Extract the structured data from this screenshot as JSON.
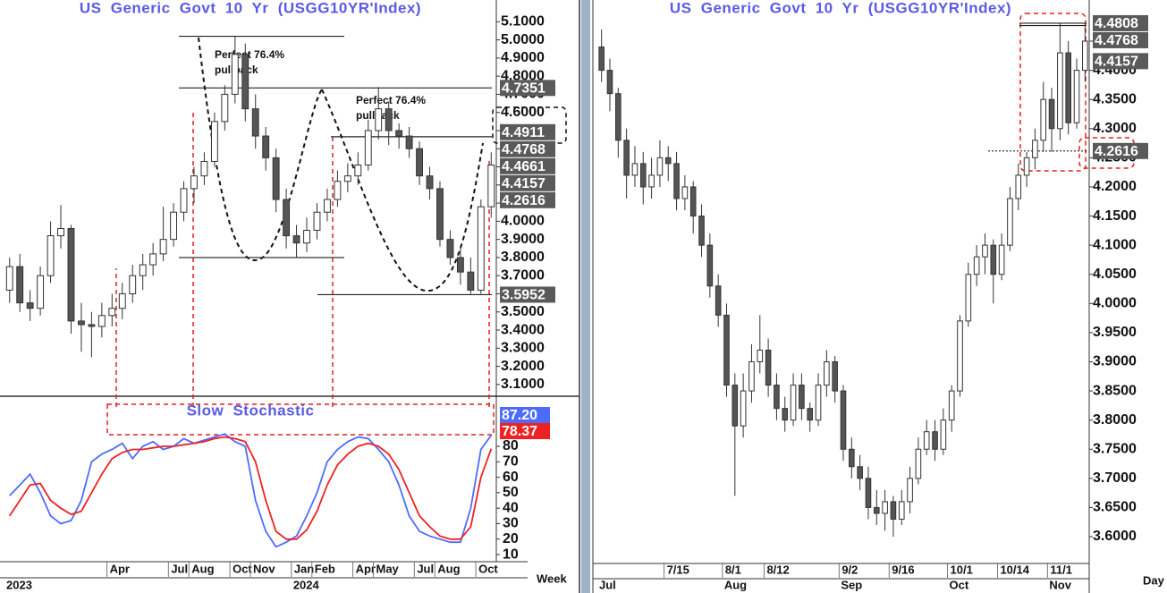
{
  "chart_data": [
    {
      "type": "candlestick",
      "title": "US Generic Govt 10 Yr (USGG10YR'Index)",
      "period_label": "Week",
      "categories": [
        null,
        null,
        null,
        null,
        null,
        null,
        null,
        null,
        null,
        null,
        "Apr",
        null,
        null,
        null,
        null,
        null,
        "Jul",
        null,
        "Aug",
        null,
        null,
        null,
        "Oct",
        null,
        "Nov",
        null,
        null,
        null,
        "Jan",
        null,
        "Feb",
        null,
        null,
        null,
        "Apr",
        null,
        "May",
        null,
        null,
        null,
        "Jul",
        null,
        "Aug",
        null,
        null,
        null,
        "Oct",
        null
      ],
      "years": [
        "2023",
        null,
        null,
        null,
        null,
        null,
        null,
        null,
        null,
        null,
        null,
        null,
        null,
        null,
        null,
        null,
        null,
        null,
        null,
        null,
        null,
        null,
        null,
        null,
        null,
        null,
        null,
        null,
        "2024",
        null,
        null,
        null,
        null,
        null,
        null,
        null,
        null,
        null,
        null,
        null,
        null,
        null,
        null,
        null,
        null,
        null,
        null,
        null
      ],
      "candles": [
        [
          3.62,
          3.8,
          3.55,
          3.75
        ],
        [
          3.75,
          3.82,
          3.5,
          3.55
        ],
        [
          3.55,
          3.62,
          3.45,
          3.52
        ],
        [
          3.52,
          3.75,
          3.48,
          3.7
        ],
        [
          3.7,
          4.0,
          3.66,
          3.92
        ],
        [
          3.92,
          4.09,
          3.85,
          3.96
        ],
        [
          3.96,
          3.98,
          3.38,
          3.45
        ],
        [
          3.45,
          3.55,
          3.28,
          3.43
        ],
        [
          3.43,
          3.5,
          3.25,
          3.42
        ],
        [
          3.42,
          3.55,
          3.36,
          3.48
        ],
        [
          3.48,
          3.6,
          3.42,
          3.52
        ],
        [
          3.52,
          3.66,
          3.46,
          3.6
        ],
        [
          3.6,
          3.76,
          3.55,
          3.7
        ],
        [
          3.7,
          3.82,
          3.62,
          3.76
        ],
        [
          3.76,
          3.88,
          3.7,
          3.82
        ],
        [
          3.82,
          4.08,
          3.78,
          3.9
        ],
        [
          3.9,
          4.1,
          3.86,
          4.05
        ],
        [
          4.05,
          4.22,
          4.0,
          4.18
        ],
        [
          4.18,
          4.3,
          4.1,
          4.25
        ],
        [
          4.25,
          4.38,
          4.2,
          4.33
        ],
        [
          4.33,
          4.6,
          4.3,
          4.55
        ],
        [
          4.55,
          4.75,
          4.5,
          4.7
        ],
        [
          4.7,
          5.02,
          4.65,
          4.92
        ],
        [
          4.92,
          4.98,
          4.55,
          4.62
        ],
        [
          4.62,
          4.7,
          4.4,
          4.47
        ],
        [
          4.47,
          4.52,
          4.28,
          4.35
        ],
        [
          4.35,
          4.4,
          4.05,
          4.12
        ],
        [
          4.12,
          4.18,
          3.85,
          3.92
        ],
        [
          3.92,
          3.98,
          3.8,
          3.88
        ],
        [
          3.88,
          4.02,
          3.83,
          3.95
        ],
        [
          3.95,
          4.1,
          3.9,
          4.05
        ],
        [
          4.05,
          4.18,
          4.0,
          4.12
        ],
        [
          4.12,
          4.28,
          4.08,
          4.22
        ],
        [
          4.22,
          4.32,
          4.16,
          4.25
        ],
        [
          4.25,
          4.38,
          4.2,
          4.31
        ],
        [
          4.31,
          4.56,
          4.28,
          4.5
        ],
        [
          4.5,
          4.74,
          4.45,
          4.62
        ],
        [
          4.62,
          4.66,
          4.42,
          4.5
        ],
        [
          4.5,
          4.54,
          4.4,
          4.47
        ],
        [
          4.47,
          4.52,
          4.35,
          4.4
        ],
        [
          4.4,
          4.44,
          4.2,
          4.25
        ],
        [
          4.25,
          4.3,
          4.12,
          4.18
        ],
        [
          4.18,
          4.22,
          3.86,
          3.9
        ],
        [
          3.9,
          3.95,
          3.76,
          3.8
        ],
        [
          3.8,
          3.86,
          3.65,
          3.72
        ],
        [
          3.72,
          3.8,
          3.6,
          3.62
        ],
        [
          3.62,
          4.12,
          3.6,
          4.08
        ],
        [
          4.08,
          4.38,
          4.02,
          4.31
        ]
      ],
      "ylim": [
        3.05,
        5.22
      ],
      "yticks": [
        {
          "value": 3.1,
          "label": "3.1000"
        },
        {
          "value": 3.2,
          "label": "3.2000"
        },
        {
          "value": 3.3,
          "label": "3.3000"
        },
        {
          "value": 3.4,
          "label": "3.4000"
        },
        {
          "value": 3.5,
          "label": "3.5000"
        },
        {
          "value": 3.6,
          "label": "3.6000"
        },
        {
          "value": 3.7,
          "label": "3.7000"
        },
        {
          "value": 3.8,
          "label": "3.8000"
        },
        {
          "value": 3.9,
          "label": "3.9000"
        },
        {
          "value": 4.0,
          "label": "4.0000"
        },
        {
          "value": 4.1,
          "label": "4.1000"
        },
        {
          "value": 4.2,
          "label": "4.2000"
        },
        {
          "value": 4.3,
          "label": "4.3000"
        },
        {
          "value": 4.4,
          "label": "4.4000"
        },
        {
          "value": 4.5,
          "label": "4.5000"
        },
        {
          "value": 4.6,
          "label": "4.6000"
        },
        {
          "value": 4.7,
          "label": "4.7000"
        },
        {
          "value": 4.8,
          "label": "4.8000"
        },
        {
          "value": 4.9,
          "label": "4.9000"
        },
        {
          "value": 5.0,
          "label": "5.0000"
        },
        {
          "value": 5.1,
          "label": "5.1000"
        }
      ],
      "levels": [
        5.02,
        4.7351,
        3.8,
        3.5952,
        4.4661
      ],
      "price_labels": [
        4.7351,
        4.4911,
        4.4768,
        4.4661,
        4.4157,
        4.2616,
        3.5952
      ],
      "annotations": [
        "Perfect 76.4%",
        "pullback",
        "Perfect 76.4%",
        "pullback"
      ]
    },
    {
      "type": "line",
      "title": "Slow Stochastic",
      "series": [
        {
          "color": "#4d6cff",
          "values": [
            48,
            55,
            62,
            50,
            35,
            30,
            32,
            45,
            70,
            75,
            78,
            82,
            72,
            80,
            83,
            78,
            80,
            85,
            82,
            84,
            86,
            88,
            83,
            80,
            45,
            25,
            15,
            18,
            22,
            35,
            50,
            70,
            78,
            83,
            86,
            85,
            78,
            70,
            55,
            35,
            25,
            22,
            20,
            18,
            18,
            40,
            78,
            87.2
          ],
          "readout": {
            "value": 87.2,
            "label": "87.20"
          }
        },
        {
          "color": "#ee2222",
          "values": [
            35,
            45,
            55,
            56,
            45,
            40,
            36,
            38,
            50,
            62,
            72,
            76,
            78,
            78,
            79,
            80,
            80,
            81,
            82,
            83,
            85,
            86,
            85,
            83,
            70,
            45,
            25,
            20,
            20,
            26,
            38,
            55,
            68,
            75,
            80,
            82,
            80,
            75,
            65,
            50,
            35,
            28,
            22,
            20,
            20,
            28,
            60,
            78.37
          ],
          "readout": {
            "value": 78.37,
            "label": "78.37"
          }
        }
      ],
      "ylim": [
        5.4,
        109.5
      ],
      "yticks": [
        10,
        20,
        30,
        40,
        50,
        60,
        70,
        80
      ]
    },
    {
      "type": "candlestick",
      "title": "US Generic Govt 10 Yr (USGG10YR'Index)",
      "period_label": "Day",
      "categories": [
        null,
        null,
        null,
        null,
        null,
        null,
        null,
        null,
        "7/15",
        null,
        null,
        null,
        null,
        null,
        null,
        "8/1",
        null,
        null,
        null,
        null,
        "8/12",
        null,
        null,
        null,
        null,
        null,
        null,
        null,
        null,
        "9/2",
        null,
        null,
        null,
        null,
        null,
        "9/16",
        null,
        null,
        null,
        null,
        null,
        null,
        "10/1",
        null,
        null,
        null,
        null,
        null,
        "10/14",
        null,
        null,
        null,
        null,
        null,
        "11/1",
        null,
        null,
        null,
        null
      ],
      "months": [
        "Jul",
        null,
        null,
        null,
        null,
        null,
        null,
        null,
        null,
        null,
        null,
        null,
        null,
        null,
        null,
        "Aug",
        null,
        null,
        null,
        null,
        null,
        null,
        null,
        null,
        null,
        null,
        null,
        null,
        null,
        "Sep",
        null,
        null,
        null,
        null,
        null,
        null,
        null,
        null,
        null,
        null,
        null,
        null,
        "Oct",
        null,
        null,
        null,
        null,
        null,
        null,
        null,
        null,
        null,
        null,
        null,
        "Nov",
        null,
        null,
        null,
        null
      ],
      "candles": [
        [
          4.44,
          4.47,
          4.38,
          4.4
        ],
        [
          4.4,
          4.42,
          4.33,
          4.36
        ],
        [
          4.36,
          4.37,
          4.25,
          4.28
        ],
        [
          4.28,
          4.3,
          4.18,
          4.22
        ],
        [
          4.22,
          4.27,
          4.2,
          4.24
        ],
        [
          4.24,
          4.26,
          4.17,
          4.2
        ],
        [
          4.2,
          4.25,
          4.18,
          4.22
        ],
        [
          4.22,
          4.28,
          4.2,
          4.25
        ],
        [
          4.25,
          4.27,
          4.21,
          4.24
        ],
        [
          4.24,
          4.26,
          4.16,
          4.18
        ],
        [
          4.18,
          4.22,
          4.16,
          4.2
        ],
        [
          4.2,
          4.21,
          4.12,
          4.15
        ],
        [
          4.15,
          4.17,
          4.08,
          4.1
        ],
        [
          4.1,
          4.12,
          4.01,
          4.03
        ],
        [
          4.03,
          4.05,
          3.96,
          3.98
        ],
        [
          3.98,
          4.0,
          3.84,
          3.86
        ],
        [
          3.86,
          3.88,
          3.67,
          3.79
        ],
        [
          3.79,
          3.88,
          3.77,
          3.85
        ],
        [
          3.85,
          3.93,
          3.83,
          3.9
        ],
        [
          3.9,
          3.98,
          3.88,
          3.92
        ],
        [
          3.92,
          3.94,
          3.84,
          3.86
        ],
        [
          3.86,
          3.88,
          3.8,
          3.82
        ],
        [
          3.82,
          3.84,
          3.78,
          3.8
        ],
        [
          3.8,
          3.88,
          3.79,
          3.86
        ],
        [
          3.86,
          3.88,
          3.8,
          3.82
        ],
        [
          3.82,
          3.83,
          3.78,
          3.8
        ],
        [
          3.8,
          3.88,
          3.79,
          3.86
        ],
        [
          3.86,
          3.92,
          3.84,
          3.9
        ],
        [
          3.9,
          3.91,
          3.83,
          3.85
        ],
        [
          3.85,
          3.86,
          3.73,
          3.75
        ],
        [
          3.75,
          3.77,
          3.7,
          3.72
        ],
        [
          3.72,
          3.74,
          3.68,
          3.7
        ],
        [
          3.7,
          3.72,
          3.63,
          3.65
        ],
        [
          3.65,
          3.68,
          3.62,
          3.64
        ],
        [
          3.64,
          3.68,
          3.61,
          3.66
        ],
        [
          3.66,
          3.67,
          3.6,
          3.63
        ],
        [
          3.63,
          3.68,
          3.62,
          3.66
        ],
        [
          3.66,
          3.72,
          3.64,
          3.7
        ],
        [
          3.7,
          3.77,
          3.69,
          3.75
        ],
        [
          3.75,
          3.8,
          3.74,
          3.78
        ],
        [
          3.78,
          3.8,
          3.73,
          3.75
        ],
        [
          3.75,
          3.82,
          3.74,
          3.8
        ],
        [
          3.8,
          3.86,
          3.78,
          3.85
        ],
        [
          3.85,
          3.98,
          3.84,
          3.97
        ],
        [
          3.97,
          4.07,
          3.96,
          4.05
        ],
        [
          4.05,
          4.1,
          4.03,
          4.08
        ],
        [
          4.08,
          4.12,
          4.05,
          4.1
        ],
        [
          4.1,
          4.11,
          4.0,
          4.05
        ],
        [
          4.05,
          4.12,
          4.04,
          4.1
        ],
        [
          4.1,
          4.2,
          4.09,
          4.18
        ],
        [
          4.18,
          4.24,
          4.16,
          4.22
        ],
        [
          4.22,
          4.26,
          4.2,
          4.25
        ],
        [
          4.25,
          4.3,
          4.23,
          4.28
        ],
        [
          4.28,
          4.38,
          4.26,
          4.35
        ],
        [
          4.35,
          4.37,
          4.26,
          4.3
        ],
        [
          4.3,
          4.48,
          4.28,
          4.43
        ],
        [
          4.43,
          4.45,
          4.29,
          4.31
        ],
        [
          4.31,
          4.42,
          4.3,
          4.4
        ],
        [
          4.4,
          4.48,
          4.38,
          4.45
        ]
      ],
      "ylim": [
        3.554,
        4.5206
      ],
      "yticks": [
        {
          "value": 3.6,
          "label": "3.6000"
        },
        {
          "value": 3.65,
          "label": "3.6500"
        },
        {
          "value": 3.7,
          "label": "3.7000"
        },
        {
          "value": 3.75,
          "label": "3.7500"
        },
        {
          "value": 3.8,
          "label": "3.8000"
        },
        {
          "value": 3.85,
          "label": "3.8500"
        },
        {
          "value": 3.9,
          "label": "3.9000"
        },
        {
          "value": 3.95,
          "label": "3.9500"
        },
        {
          "value": 4.0,
          "label": "4.0000"
        },
        {
          "value": 4.05,
          "label": "4.0500"
        },
        {
          "value": 4.1,
          "label": "4.1000"
        },
        {
          "value": 4.15,
          "label": "4.1500"
        },
        {
          "value": 4.2,
          "label": "4.2000"
        },
        {
          "value": 4.25,
          "label": "4.2500"
        },
        {
          "value": 4.3,
          "label": "4.3000"
        },
        {
          "value": 4.35,
          "label": "4.3500"
        },
        {
          "value": 4.4,
          "label": "4.4000"
        },
        {
          "value": 4.45,
          "label": "4.4500"
        }
      ],
      "levels": [
        4.2616,
        4.4808,
        4.4768
      ],
      "price_labels": [
        4.4808,
        4.4768,
        4.4157,
        4.2616
      ]
    }
  ]
}
